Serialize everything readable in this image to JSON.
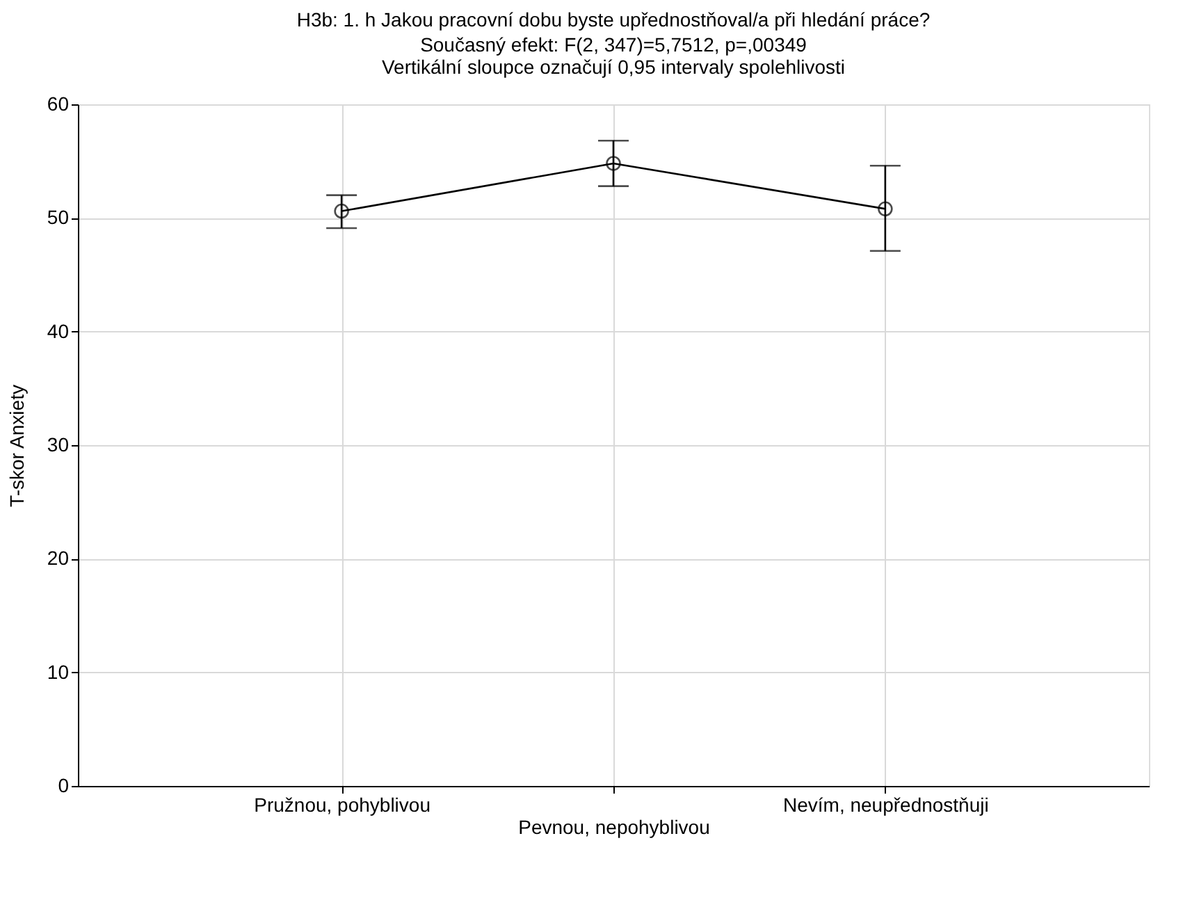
{
  "chart_data": {
    "type": "line",
    "title": "H3b: 1. h Jakou pracovní dobu byste upřednostňoval/a při hledání práce?",
    "subtitle": "Současný efekt: F(2, 347)=5,7512, p=,00349\nVertikální sloupce označují 0,95 intervaly spolehlivosti",
    "ylabel": "T-skor Anxiety",
    "categories": [
      "Pružnou, pohyblivou",
      "Pevnou, nepohyblivou",
      "Nevím, neupřednostňuji"
    ],
    "series": [
      {
        "color": "#000000",
        "values": [
          50.6,
          54.8,
          50.8
        ],
        "errors": [
          [
            49.1,
            52.0
          ],
          [
            52.8,
            56.8
          ],
          [
            47.1,
            54.6
          ]
        ]
      }
    ],
    "ylim": [
      0,
      60
    ],
    "yticks": [
      0,
      10,
      20,
      30,
      40,
      50,
      60
    ],
    "grid": true,
    "marker": "circle",
    "line_style": "solid"
  }
}
